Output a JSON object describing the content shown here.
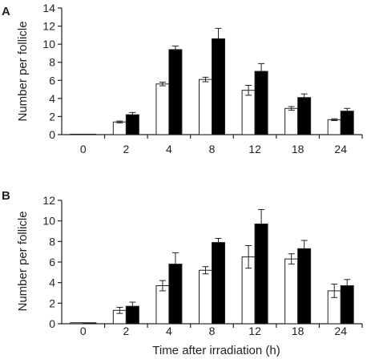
{
  "chart_data": [
    {
      "panel": "A",
      "type": "bar",
      "categories": [
        "0",
        "2",
        "4",
        "8",
        "12",
        "18",
        "24"
      ],
      "ylabel": "Number per follicle",
      "xlabel": "",
      "ylim": [
        0,
        14
      ],
      "yticks": [
        0,
        2,
        4,
        6,
        8,
        10,
        12,
        14
      ],
      "series": [
        {
          "fill": "#ffffff",
          "values": [
            0.05,
            1.4,
            5.6,
            6.1,
            4.9,
            2.9,
            1.65
          ],
          "errors": [
            0.0,
            0.1,
            0.2,
            0.25,
            0.55,
            0.2,
            0.1
          ]
        },
        {
          "fill": "#000000",
          "values": [
            0.05,
            2.2,
            9.4,
            10.6,
            7.0,
            4.1,
            2.6
          ],
          "errors": [
            0.0,
            0.25,
            0.4,
            1.15,
            0.85,
            0.4,
            0.3
          ]
        }
      ]
    },
    {
      "panel": "B",
      "type": "bar",
      "categories": [
        "0",
        "2",
        "4",
        "8",
        "12",
        "18",
        "24"
      ],
      "ylabel": "Number per follicle",
      "xlabel": "Time after irradiation (h)",
      "ylim": [
        0,
        12
      ],
      "yticks": [
        0,
        2,
        4,
        6,
        8,
        10,
        12
      ],
      "series": [
        {
          "fill": "#ffffff",
          "values": [
            0.1,
            1.3,
            3.7,
            5.2,
            6.5,
            6.3,
            3.2
          ],
          "errors": [
            0.0,
            0.3,
            0.5,
            0.35,
            1.1,
            0.5,
            0.65
          ]
        },
        {
          "fill": "#000000",
          "values": [
            0.1,
            1.7,
            5.8,
            7.9,
            9.7,
            7.3,
            3.7
          ],
          "errors": [
            0.0,
            0.4,
            1.1,
            0.4,
            1.4,
            0.8,
            0.6
          ]
        }
      ]
    }
  ]
}
